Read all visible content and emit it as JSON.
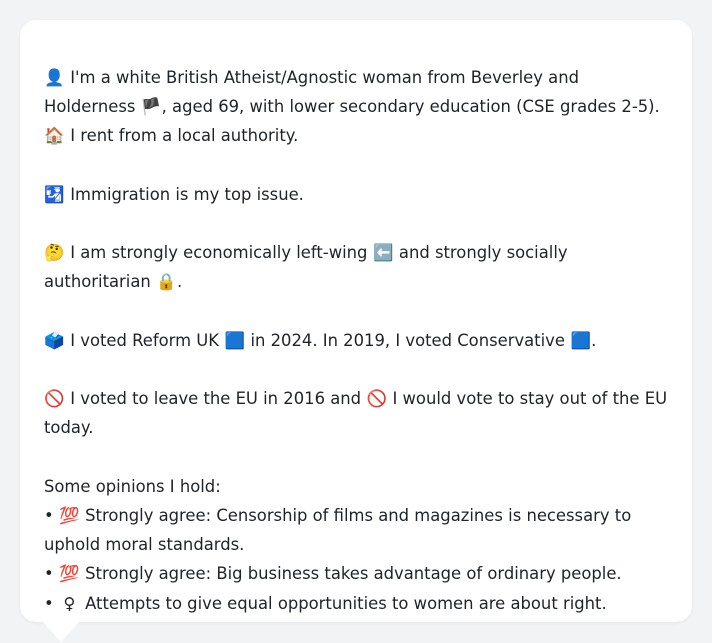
{
  "persona": {
    "intro": {
      "icon": "👤",
      "text_before_flag": "I'm a white British Atheist/Agnostic woman from Beverley and Holderness",
      "flag": "🏴",
      "text_after_flag": ", aged 69, with lower secondary education (CSE grades 2-5)."
    },
    "housing": {
      "icon": "🏠",
      "text": "I rent from a local authority."
    },
    "top_issue": {
      "icon": "🛂",
      "text": "Immigration is my top issue."
    },
    "ideology": {
      "icon": "🤔",
      "text_before_left": "I am strongly economically left-wing",
      "left_icon": "⬅️",
      "text_middle": "and strongly socially authoritarian",
      "lock_icon": "🔒",
      "text_end": "."
    },
    "vote": {
      "icon": "🗳️",
      "text_before_2024": "I voted Reform UK",
      "reform_icon": "🟦",
      "text_2024": "in 2024. In 2019, I voted Conservative",
      "conservative_icon": "🟦",
      "text_end": "."
    },
    "eu": {
      "icon": "🚫",
      "text_before_second": "I voted to leave the EU in 2016 and",
      "second_icon": "🚫",
      "text_after_second": "I would vote to stay out of the EU today."
    },
    "opinions": {
      "heading": "Some opinions I hold:",
      "items": [
        {
          "bullet": "•",
          "icon": "💯",
          "text": "Strongly agree: Censorship of films and magazines is necessary to uphold moral standards."
        },
        {
          "bullet": "•",
          "icon": "💯",
          "text": "Strongly agree: Big business takes advantage of ordinary people."
        },
        {
          "bullet": "•",
          "icon": "♀",
          "text": "Attempts to give equal opportunities to women are about right."
        }
      ]
    }
  },
  "colors": {
    "page_background": "#f2f3f5",
    "card_background": "#ffffff",
    "text": "#1f2328"
  }
}
